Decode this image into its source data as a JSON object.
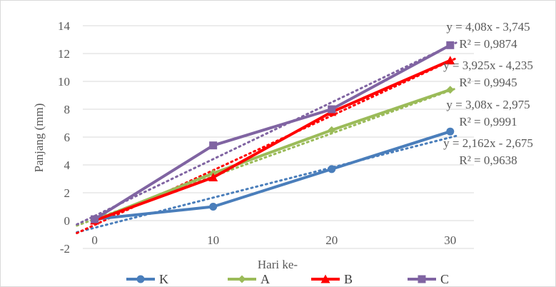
{
  "chart_data": {
    "type": "line",
    "xlabel": "Hari ke-",
    "ylabel": "Panjang (mm)",
    "x": [
      0,
      10,
      20,
      30
    ],
    "xlim": [
      -1,
      32
    ],
    "ylim": [
      -2,
      14
    ],
    "y_ticks": [
      -2,
      0,
      2,
      4,
      6,
      8,
      10,
      12,
      14
    ],
    "x_ticks": [
      0,
      10,
      20,
      30
    ],
    "grid": "horizontal",
    "legend_position": "bottom",
    "series": [
      {
        "name": "K",
        "color": "#4a7ebb",
        "marker": "circle",
        "values": [
          0.1,
          1.0,
          3.7,
          6.4
        ],
        "trend": {
          "slope": 2.162,
          "intercept": -2.675,
          "equation": "y = 2,162x - 2,675",
          "r2": "R² = 0,9638"
        }
      },
      {
        "name": "A",
        "color": "#9bbb59",
        "marker": "diamond",
        "values": [
          0.0,
          3.4,
          6.5,
          9.4
        ],
        "trend": {
          "slope": 3.08,
          "intercept": -2.975,
          "equation": "y = 3,08x - 2,975",
          "r2": "R² = 0,9991"
        }
      },
      {
        "name": "B",
        "color": "#ff0000",
        "marker": "triangle",
        "values": [
          0.0,
          3.1,
          7.8,
          11.5
        ],
        "trend": {
          "slope": 3.925,
          "intercept": -4.235,
          "equation": "y = 3,925x - 4,235",
          "r2": "R² = 0,9945"
        }
      },
      {
        "name": "C",
        "color": "#8064a2",
        "marker": "square",
        "values": [
          0.1,
          5.4,
          8.0,
          12.6
        ],
        "trend": {
          "slope": 4.08,
          "intercept": -3.745,
          "equation": "y = 4,08x - 3,745",
          "r2": "R² = 0,9874"
        }
      }
    ]
  }
}
